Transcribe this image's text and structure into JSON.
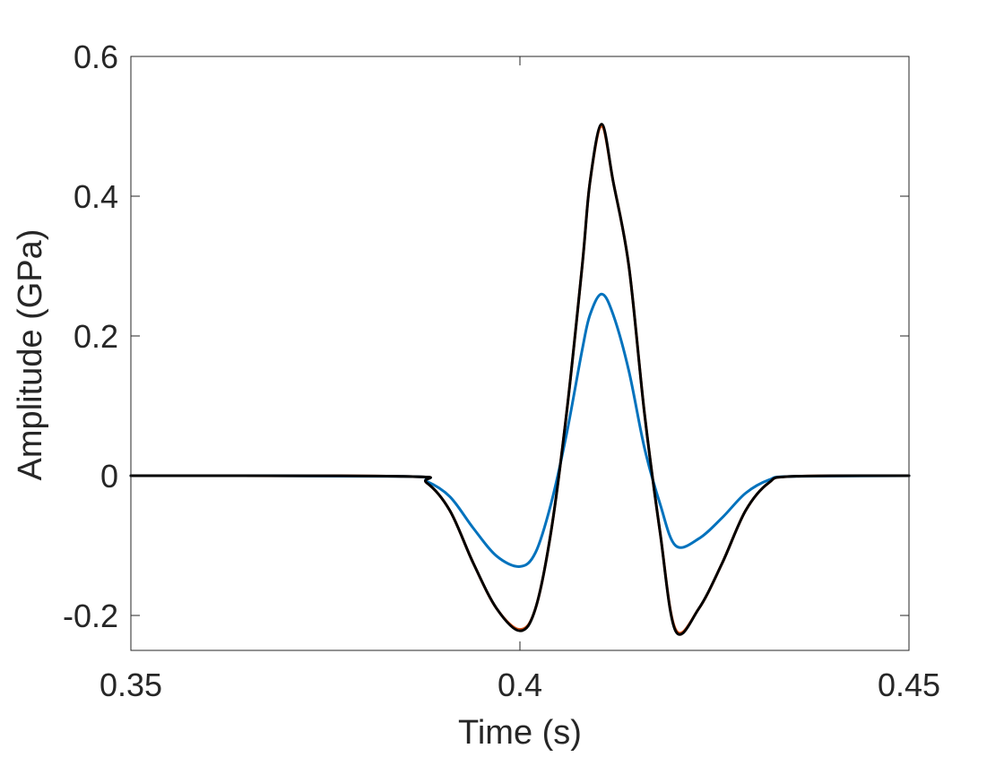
{
  "chart_data": {
    "type": "line",
    "title": "",
    "xlabel": "Time (s)",
    "ylabel": "Amplitude (GPa)",
    "xlim": [
      0.35,
      0.45
    ],
    "ylim": [
      -0.25,
      0.6
    ],
    "xticks": [
      0.35,
      0.4,
      0.45
    ],
    "xtick_labels": [
      "0.35",
      "0.4",
      "0.45"
    ],
    "yticks": [
      -0.2,
      0,
      0.2,
      0.4,
      0.6
    ],
    "ytick_labels": [
      "-0.2",
      "0",
      "0.2",
      "0.4",
      "0.6"
    ],
    "grid": false,
    "legend": "none",
    "series": [
      {
        "color": "#D95319",
        "x": [
          0.35,
          0.385,
          0.388,
          0.391,
          0.394,
          0.397,
          0.4,
          0.402,
          0.404,
          0.406,
          0.408,
          0.409,
          0.4105,
          0.412,
          0.414,
          0.416,
          0.418,
          0.42,
          0.423,
          0.426,
          0.429,
          0.432,
          0.435,
          0.45
        ],
        "y": [
          0,
          -0.001,
          -0.01,
          -0.05,
          -0.125,
          -0.19,
          -0.22,
          -0.19,
          -0.08,
          0.09,
          0.3,
          0.42,
          0.5,
          0.42,
          0.3,
          0.09,
          -0.08,
          -0.22,
          -0.19,
          -0.125,
          -0.05,
          -0.01,
          -0.001,
          0
        ]
      },
      {
        "color": "#0072BD",
        "x": [
          0.35,
          0.385,
          0.388,
          0.391,
          0.394,
          0.397,
          0.4,
          0.402,
          0.404,
          0.406,
          0.408,
          0.409,
          0.4105,
          0.412,
          0.414,
          0.416,
          0.418,
          0.42,
          0.423,
          0.426,
          0.429,
          0.432,
          0.435,
          0.45
        ],
        "y": [
          0,
          -0.001,
          -0.008,
          -0.03,
          -0.075,
          -0.115,
          -0.13,
          -0.11,
          -0.04,
          0.06,
          0.18,
          0.23,
          0.26,
          0.23,
          0.15,
          0.04,
          -0.04,
          -0.1,
          -0.09,
          -0.06,
          -0.025,
          -0.006,
          -0.001,
          0
        ]
      },
      {
        "color": "#000000",
        "x": [
          0.35,
          0.385,
          0.388,
          0.391,
          0.394,
          0.397,
          0.4,
          0.402,
          0.404,
          0.406,
          0.408,
          0.409,
          0.4105,
          0.412,
          0.414,
          0.416,
          0.418,
          0.42,
          0.423,
          0.426,
          0.429,
          0.432,
          0.435,
          0.45
        ],
        "y": [
          0,
          -0.001,
          -0.01,
          -0.05,
          -0.125,
          -0.19,
          -0.222,
          -0.19,
          -0.08,
          0.09,
          0.3,
          0.42,
          0.503,
          0.42,
          0.3,
          0.09,
          -0.08,
          -0.222,
          -0.19,
          -0.125,
          -0.05,
          -0.01,
          -0.001,
          0
        ]
      }
    ]
  }
}
